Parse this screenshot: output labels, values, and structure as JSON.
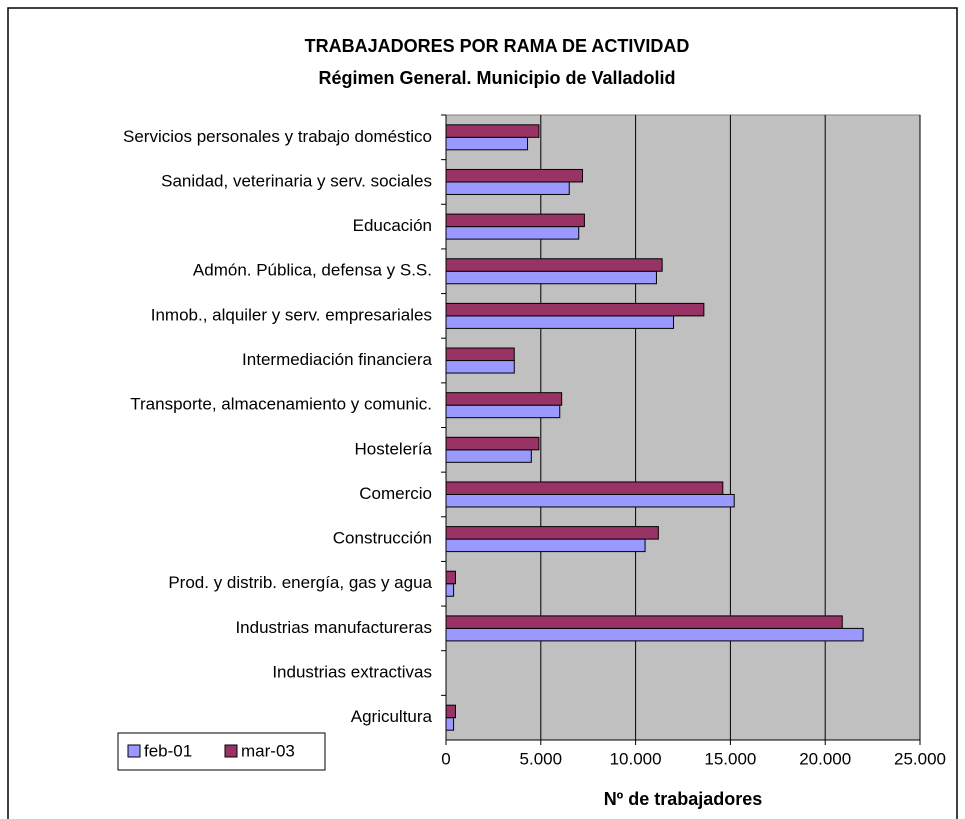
{
  "chart_data": {
    "type": "hbar",
    "title": "TRABAJADORES POR RAMA DE ACTIVIDAD",
    "subtitle": "Régimen General. Municipio de Valladolid",
    "x_label": "Nº de trabajadores",
    "categories": [
      "Servicios personales y trabajo doméstico",
      "Sanidad, veterinaria y serv. sociales",
      "Educación",
      "Admón. Pública, defensa y S.S.",
      "Inmob., alquiler y serv. empresariales",
      "Intermediación financiera",
      "Transporte, almacenamiento y comunic.",
      "Hostelería",
      "Comercio",
      "Construcción",
      "Prod. y distrib. energía, gas y agua",
      "Industrias manufactureras",
      "Industrias extractivas",
      "Agricultura"
    ],
    "series": [
      {
        "name": "feb-01",
        "color": "#9999ff",
        "values": [
          4300,
          6500,
          7000,
          11100,
          12000,
          3600,
          6000,
          4500,
          15200,
          10500,
          400,
          22000,
          0,
          400
        ]
      },
      {
        "name": "mar-03",
        "color": "#993366",
        "values": [
          4900,
          7200,
          7300,
          11400,
          13600,
          3600,
          6100,
          4900,
          14600,
          11200,
          500,
          20900,
          0,
          500
        ]
      }
    ],
    "xlim": [
      0,
      25000
    ],
    "xticks": [
      0,
      {
        "value": 5000,
        "label": "5.000"
      },
      {
        "value": 10000,
        "label": "10.000"
      },
      {
        "value": 15000,
        "label": "15.000"
      },
      {
        "value": 20000,
        "label": "20.000"
      },
      {
        "value": 25000,
        "label": "25.000"
      }
    ],
    "grid": true,
    "legend": "bottom-left"
  }
}
